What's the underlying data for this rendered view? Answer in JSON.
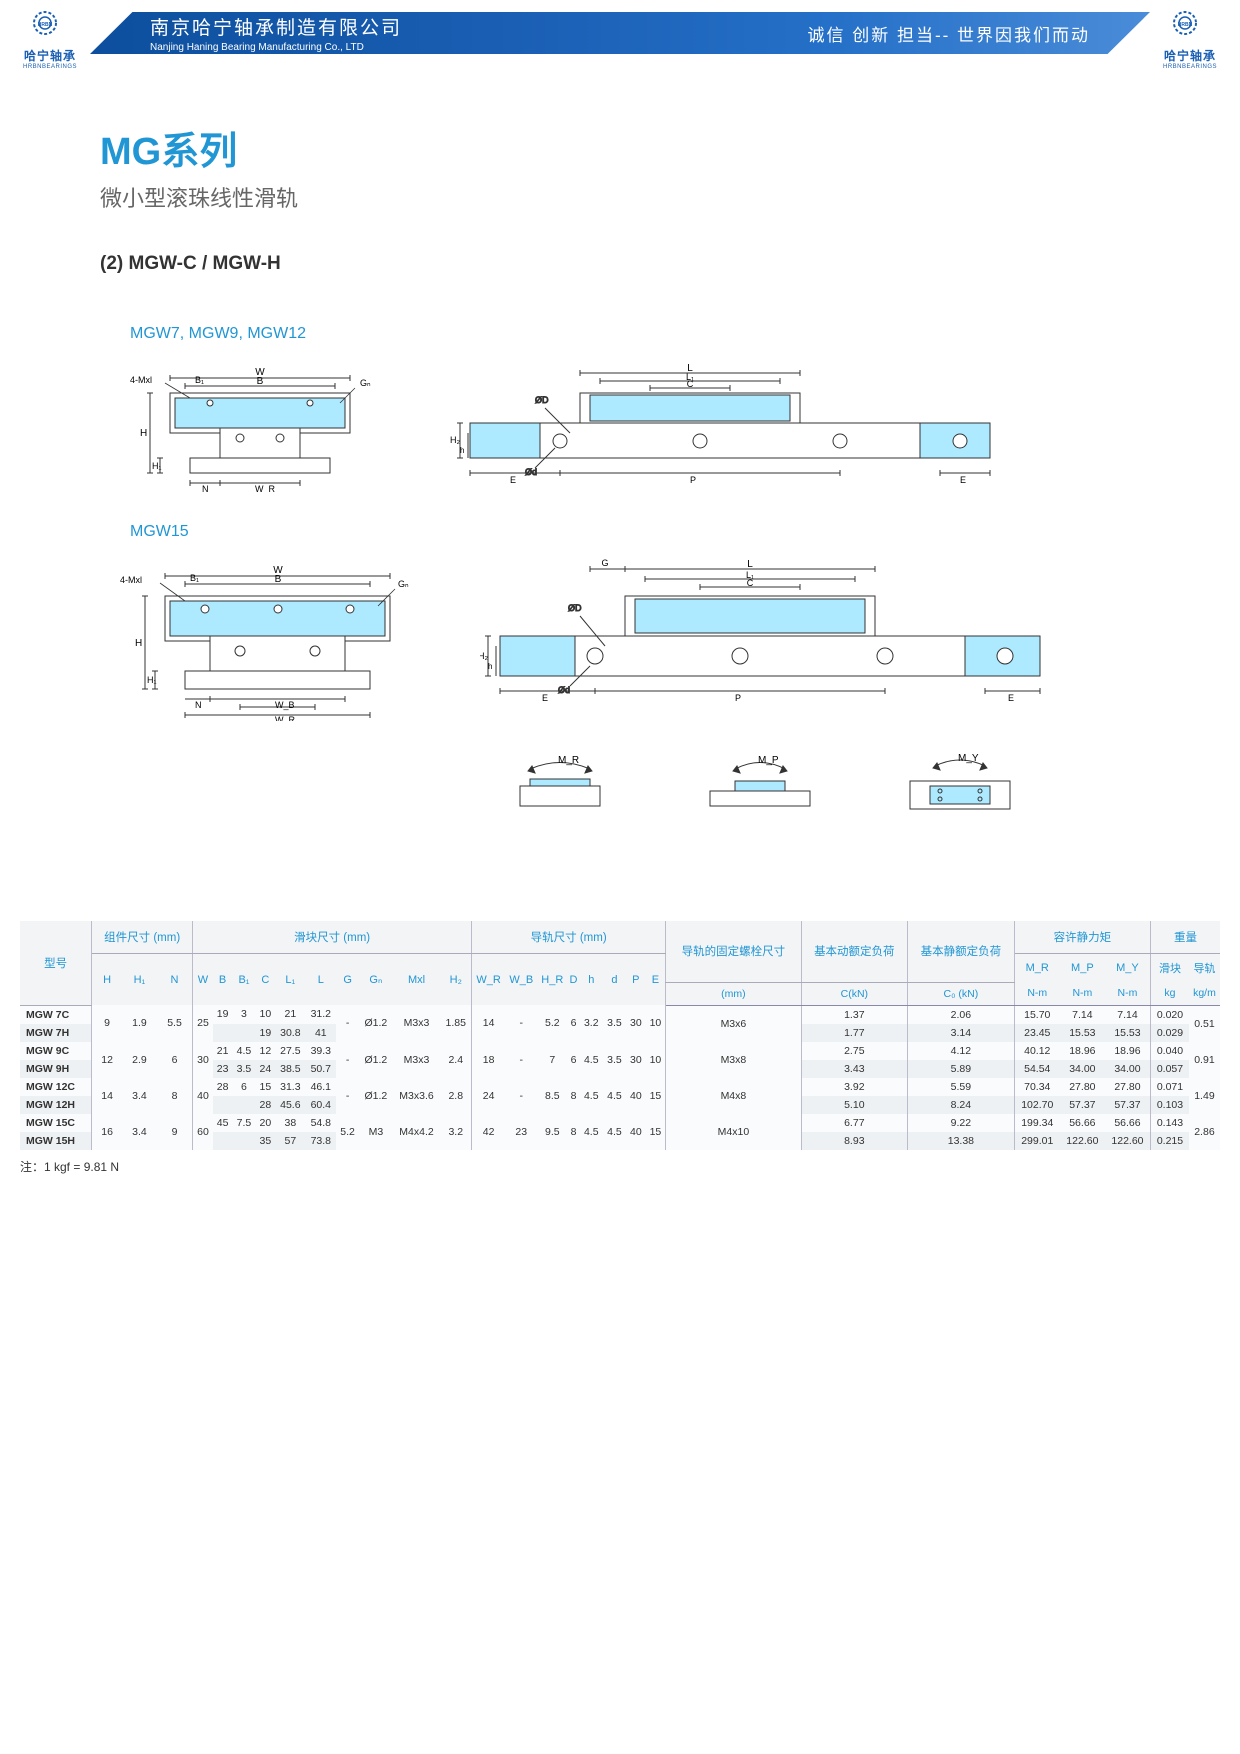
{
  "header": {
    "company_cn": "南京哈宁轴承制造有限公司",
    "company_en": "Nanjing Haning Bearing Manufacturing Co., LTD",
    "slogan": "诚信 创新 担当-- 世界因我们而动",
    "logo_text": "哈宁轴承",
    "logo_sub": "HRBNBEARINGS",
    "logo_brand": "HRBN"
  },
  "title": {
    "main": "MG系列",
    "sub": "微小型滚珠线性滑轨"
  },
  "section": "(2) MGW-C / MGW-H",
  "diag_labels": {
    "group1": "MGW7, MGW9, MGW12",
    "group2": "MGW15"
  },
  "dim_labels": {
    "W": "W",
    "B": "B",
    "B1": "B₁",
    "Gn": "Gₙ",
    "Mxl": "4-Mxl",
    "H": "H",
    "H1": "H₁",
    "N": "N",
    "WR": "W_R",
    "WB": "W_B",
    "L": "L",
    "L1": "L₁",
    "C": "C",
    "OD": "ØD",
    "Od": "Ød",
    "H2": "H₂",
    "h": "h",
    "E": "E",
    "P": "P",
    "G": "G",
    "MR": "M_R",
    "MP": "M_P",
    "MY": "M_Y"
  },
  "table": {
    "group_headers": [
      "型号",
      "组件尺寸 (mm)",
      "滑块尺寸 (mm)",
      "导轨尺寸 (mm)",
      "导轨的固定螺栓尺寸",
      "基本动额定负荷",
      "基本静额定负荷",
      "容许静力矩",
      "重量"
    ],
    "cols": [
      "H",
      "H₁",
      "N",
      "W",
      "B",
      "B₁",
      "C",
      "L₁",
      "L",
      "G",
      "Gₙ",
      "Mxl",
      "H₂",
      "W_R",
      "W_B",
      "H_R",
      "D",
      "h",
      "d",
      "P",
      "E",
      "(mm)",
      "C(kN)",
      "C₀ (kN)",
      "M_R",
      "M_P",
      "M_Y",
      "滑块",
      "导轨"
    ],
    "unit_row": [
      "",
      "",
      "",
      "",
      "",
      "",
      "",
      "",
      "",
      "",
      "",
      "",
      "",
      "",
      "",
      "",
      "",
      "",
      "",
      "",
      "",
      "",
      "",
      "",
      "N-m",
      "N-m",
      "N-m",
      "kg",
      "kg/m"
    ],
    "rows": [
      {
        "model": "MGW 7C",
        "H": "9",
        "H1": "1.9",
        "N": "5.5",
        "W": "25",
        "B": "19",
        "B1": "3",
        "C": "10",
        "L1": "21",
        "L": "31.2",
        "G": "-",
        "Gn": "Ø1.2",
        "Mxl": "M3x3",
        "H2": "1.85",
        "WR": "14",
        "WB": "-",
        "HR": "5.2",
        "D": "6",
        "h": "3.2",
        "d": "3.5",
        "P": "30",
        "E": "10",
        "bolt": "M3x6",
        "Ck": "1.37",
        "C0": "2.06",
        "MR": "15.70",
        "MP": "7.14",
        "MY": "7.14",
        "blk": "0.020",
        "rail": "0.51"
      },
      {
        "model": "MGW 7H",
        "H": "",
        "H1": "",
        "N": "",
        "W": "",
        "B": "",
        "B1": "",
        "C": "19",
        "L1": "30.8",
        "L": "41",
        "G": "",
        "Gn": "",
        "Mxl": "",
        "H2": "",
        "WR": "",
        "WB": "",
        "HR": "",
        "D": "",
        "h": "",
        "d": "",
        "P": "",
        "E": "",
        "bolt": "",
        "Ck": "1.77",
        "C0": "3.14",
        "MR": "23.45",
        "MP": "15.53",
        "MY": "15.53",
        "blk": "0.029",
        "rail": ""
      },
      {
        "model": "MGW 9C",
        "H": "12",
        "H1": "2.9",
        "N": "6",
        "W": "30",
        "B": "21",
        "B1": "4.5",
        "C": "12",
        "L1": "27.5",
        "L": "39.3",
        "G": "-",
        "Gn": "Ø1.2",
        "Mxl": "M3x3",
        "H2": "2.4",
        "WR": "18",
        "WB": "-",
        "HR": "7",
        "D": "6",
        "h": "4.5",
        "d": "3.5",
        "P": "30",
        "E": "10",
        "bolt": "M3x8",
        "Ck": "2.75",
        "C0": "4.12",
        "MR": "40.12",
        "MP": "18.96",
        "MY": "18.96",
        "blk": "0.040",
        "rail": "0.91"
      },
      {
        "model": "MGW 9H",
        "H": "",
        "H1": "",
        "N": "",
        "W": "",
        "B": "23",
        "B1": "3.5",
        "C": "24",
        "L1": "38.5",
        "L": "50.7",
        "G": "",
        "Gn": "",
        "Mxl": "",
        "H2": "",
        "WR": "",
        "WB": "",
        "HR": "",
        "D": "",
        "h": "",
        "d": "",
        "P": "",
        "E": "",
        "bolt": "",
        "Ck": "3.43",
        "C0": "5.89",
        "MR": "54.54",
        "MP": "34.00",
        "MY": "34.00",
        "blk": "0.057",
        "rail": ""
      },
      {
        "model": "MGW 12C",
        "H": "14",
        "H1": "3.4",
        "N": "8",
        "W": "40",
        "B": "28",
        "B1": "6",
        "C": "15",
        "L1": "31.3",
        "L": "46.1",
        "G": "-",
        "Gn": "Ø1.2",
        "Mxl": "M3x3.6",
        "H2": "2.8",
        "WR": "24",
        "WB": "-",
        "HR": "8.5",
        "D": "8",
        "h": "4.5",
        "d": "4.5",
        "P": "40",
        "E": "15",
        "bolt": "M4x8",
        "Ck": "3.92",
        "C0": "5.59",
        "MR": "70.34",
        "MP": "27.80",
        "MY": "27.80",
        "blk": "0.071",
        "rail": "1.49"
      },
      {
        "model": "MGW 12H",
        "H": "",
        "H1": "",
        "N": "",
        "W": "",
        "B": "",
        "B1": "",
        "C": "28",
        "L1": "45.6",
        "L": "60.4",
        "G": "",
        "Gn": "",
        "Mxl": "",
        "H2": "",
        "WR": "",
        "WB": "",
        "HR": "",
        "D": "",
        "h": "",
        "d": "",
        "P": "",
        "E": "",
        "bolt": "",
        "Ck": "5.10",
        "C0": "8.24",
        "MR": "102.70",
        "MP": "57.37",
        "MY": "57.37",
        "blk": "0.103",
        "rail": ""
      },
      {
        "model": "MGW 15C",
        "H": "16",
        "H1": "3.4",
        "N": "9",
        "W": "60",
        "B": "45",
        "B1": "7.5",
        "C": "20",
        "L1": "38",
        "L": "54.8",
        "G": "5.2",
        "Gn": "M3",
        "Mxl": "M4x4.2",
        "H2": "3.2",
        "WR": "42",
        "WB": "23",
        "HR": "9.5",
        "D": "8",
        "h": "4.5",
        "d": "4.5",
        "P": "40",
        "E": "15",
        "bolt": "M4x10",
        "Ck": "6.77",
        "C0": "9.22",
        "MR": "199.34",
        "MP": "56.66",
        "MY": "56.66",
        "blk": "0.143",
        "rail": "2.86"
      },
      {
        "model": "MGW 15H",
        "H": "",
        "H1": "",
        "N": "",
        "W": "",
        "B": "",
        "B1": "",
        "C": "35",
        "L1": "57",
        "L": "73.8",
        "G": "",
        "Gn": "",
        "Mxl": "",
        "H2": "",
        "WR": "",
        "WB": "",
        "HR": "",
        "D": "",
        "h": "",
        "d": "",
        "P": "",
        "E": "",
        "bolt": "",
        "Ck": "8.93",
        "C0": "13.38",
        "MR": "299.01",
        "MP": "122.60",
        "MY": "122.60",
        "blk": "0.215",
        "rail": ""
      }
    ]
  },
  "footnote": "注：1 kgf = 9.81 N",
  "colors": {
    "accent": "#2196d4",
    "banner1": "#0d4f9e",
    "banner2": "#4a8cd8",
    "diag_fill": "#aeeaff",
    "diag_line": "#333"
  }
}
